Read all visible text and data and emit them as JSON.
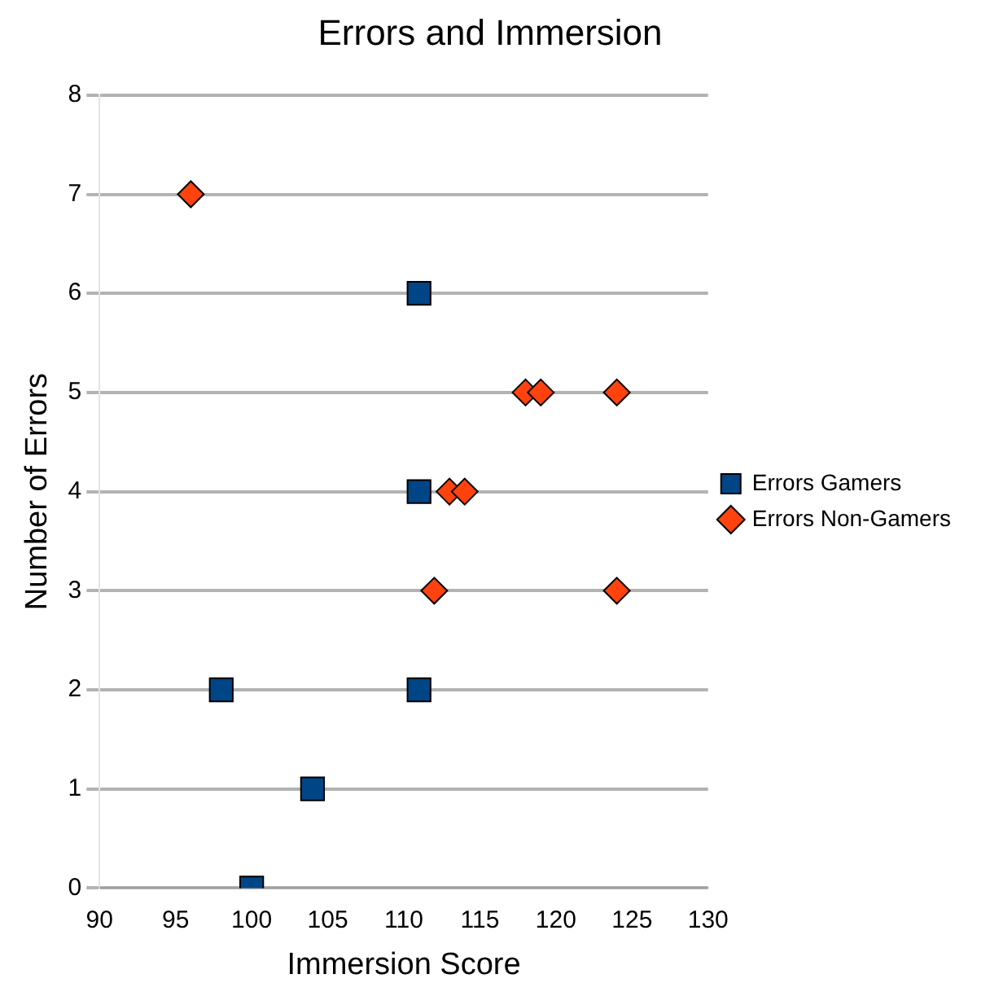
{
  "chart_data": {
    "type": "scatter",
    "title": "Errors and Immersion",
    "xlabel": "Immersion Score",
    "ylabel": "Number of Errors",
    "xlim": [
      90,
      130
    ],
    "xticks": [
      90,
      95,
      100,
      105,
      110,
      115,
      120,
      125,
      130
    ],
    "ylim": [
      0,
      8
    ],
    "yticks": [
      0,
      1,
      2,
      3,
      4,
      5,
      6,
      7,
      8
    ],
    "grid": "y",
    "legend": "right",
    "series": [
      {
        "name": "Errors Gamers",
        "color": "#004586",
        "marker": "square",
        "x": [
          100,
          104,
          98,
          111,
          111,
          111
        ],
        "values": [
          0,
          1,
          2,
          2,
          4,
          6
        ]
      },
      {
        "name": "Errors Non-Gamers",
        "color": "#ff420e",
        "marker": "diamond",
        "x": [
          96,
          118,
          119,
          124,
          113,
          114,
          112,
          124
        ],
        "values": [
          7,
          5,
          5,
          5,
          4,
          4,
          3,
          3
        ]
      }
    ]
  }
}
